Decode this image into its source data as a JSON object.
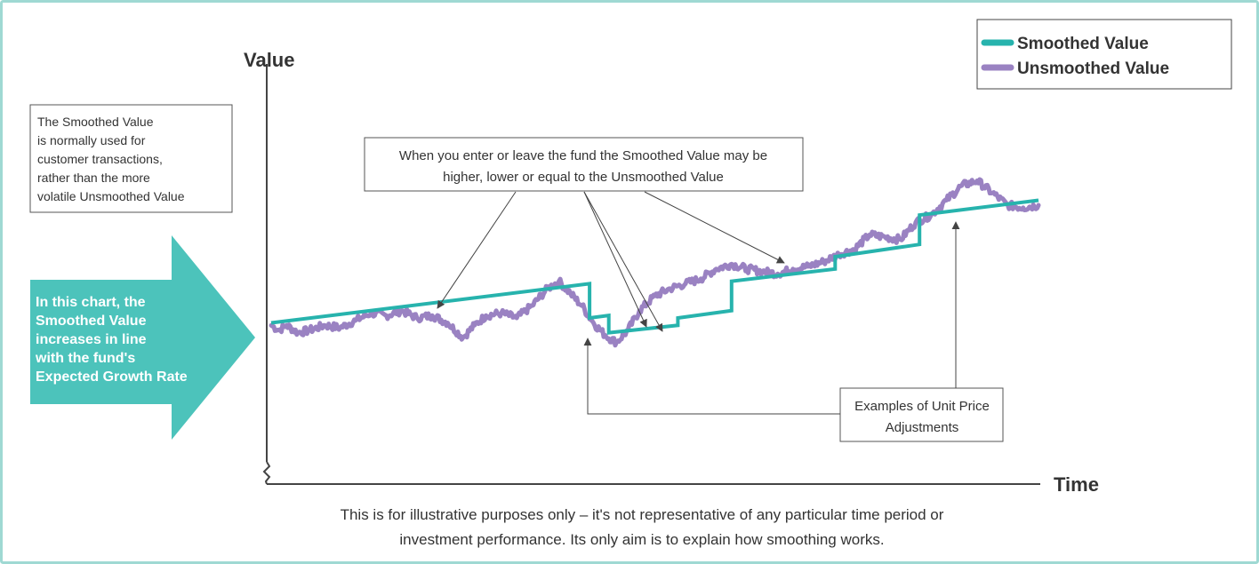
{
  "colors": {
    "frame": "#9fd9d3",
    "smoothed": "#27b3ad",
    "unsmoothed": "#9a82c2",
    "arrow_fill": "#4cc3bb",
    "axis": "#444444",
    "text": "#333333"
  },
  "chart_data": {
    "type": "line",
    "xlabel": "Time",
    "ylabel": "Value",
    "x_range": [
      0,
      100
    ],
    "y_range": [
      0,
      100
    ],
    "ticks": "none",
    "grid": false,
    "legend_position": "top-right",
    "legend": [
      "Smoothed Value",
      "Unsmoothed Value"
    ],
    "series": [
      {
        "name": "Smoothed Value",
        "style": "step",
        "x": [
          0,
          41.5,
          41.5,
          44,
          44,
          53,
          53,
          60,
          60,
          73.5,
          73.5,
          84.5,
          84.5,
          100
        ],
        "y": [
          48,
          64,
          50,
          51,
          44,
          47,
          50,
          53,
          65,
          70,
          75,
          80,
          92,
          98
        ]
      },
      {
        "name": "Unsmoothed Value",
        "style": "volatile",
        "x": [
          0,
          1,
          2,
          3.5,
          5,
          7,
          9,
          11,
          13,
          15,
          17,
          19,
          21,
          23,
          25,
          26.5,
          28,
          30,
          32,
          34,
          36,
          37.5,
          39,
          40.5,
          42,
          43.5,
          45,
          46.5,
          48,
          50,
          52,
          54,
          56,
          58,
          60,
          62,
          64,
          66,
          68,
          70,
          72,
          74,
          76,
          78,
          80,
          82,
          84,
          86,
          88,
          90,
          92,
          94,
          96,
          98,
          100
        ],
        "y": [
          47,
          45,
          47,
          44,
          45,
          47,
          46,
          49,
          52,
          51,
          53,
          50,
          51,
          48,
          42,
          47,
          51,
          52,
          50,
          55,
          62,
          65,
          60,
          55,
          48,
          43,
          40,
          45,
          53,
          59,
          62,
          64,
          66,
          70,
          72,
          70,
          69,
          68,
          70,
          71,
          73,
          76,
          78,
          84,
          83,
          82,
          89,
          92,
          98,
          104,
          106,
          101,
          96,
          95,
          96
        ]
      }
    ]
  },
  "annotations": {
    "info_box": [
      "The Smoothed Value",
      "is normally used for",
      "customer transactions,",
      "rather than the more",
      "volatile Unsmoothed Value"
    ],
    "arrow_text": [
      "In this chart, the",
      "Smoothed Value",
      "increases in line",
      "with the fund's",
      "Expected Growth Rate"
    ],
    "callout_enter_leave": [
      "When you enter or leave the fund the Smoothed Value may be",
      "higher, lower or equal to the Unsmoothed Value"
    ],
    "callout_adjustments": [
      "Examples of Unit Price",
      "Adjustments"
    ],
    "footnote": [
      "This is for illustrative purposes only – it's not representative of any particular time period or",
      "investment performance. Its only aim is to explain how smoothing works."
    ]
  }
}
